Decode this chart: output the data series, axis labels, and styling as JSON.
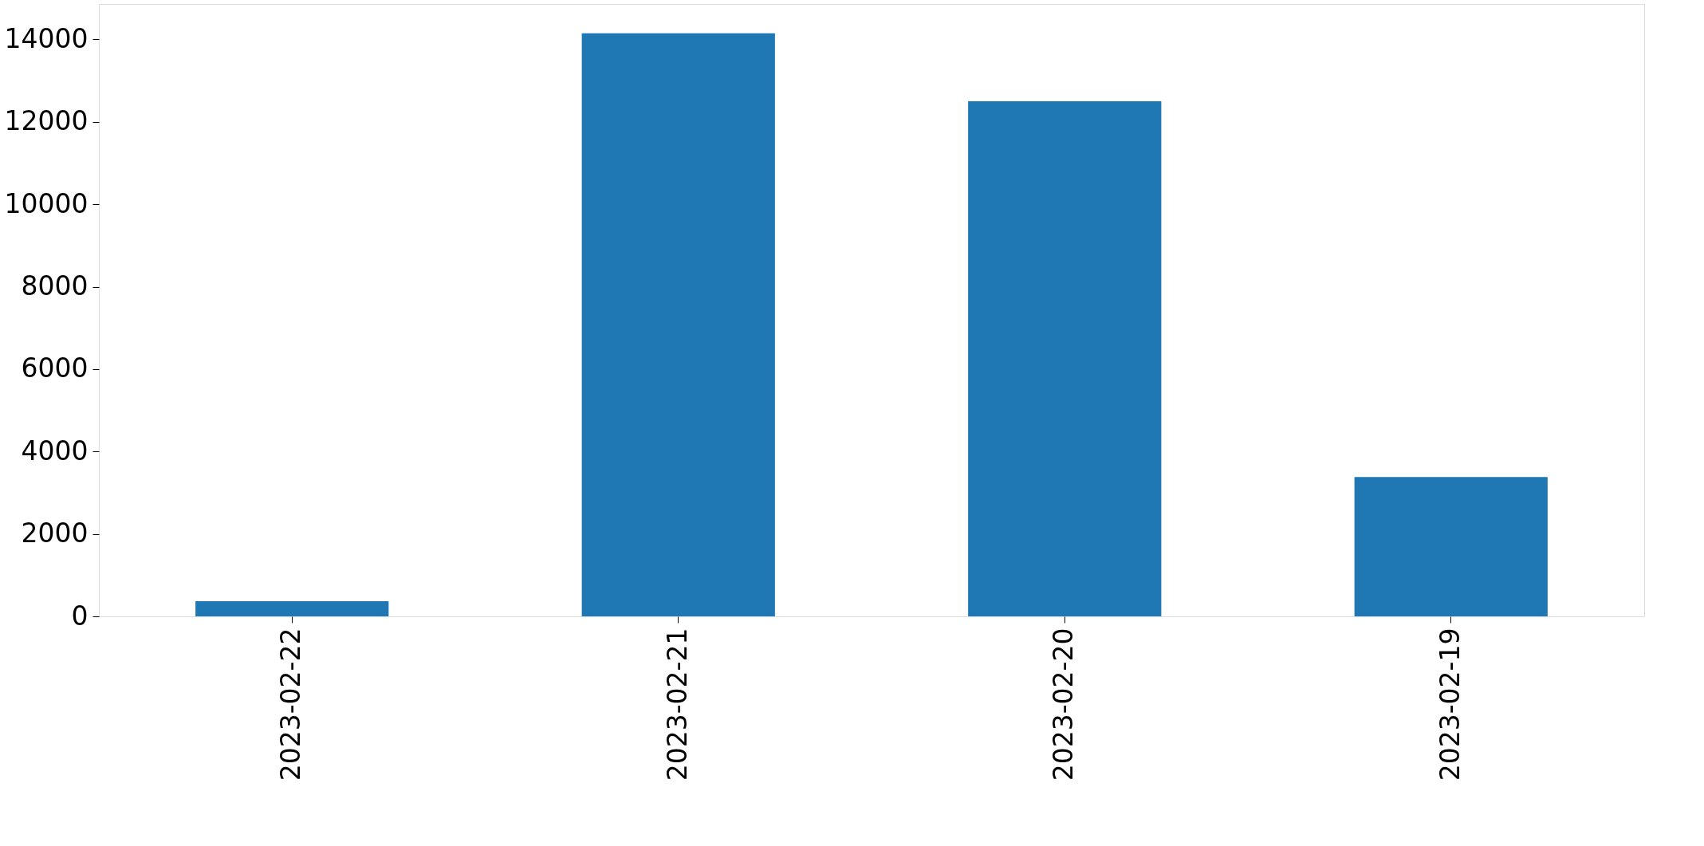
{
  "chart_data": {
    "type": "bar",
    "categories": [
      "2023-02-22",
      "2023-02-21",
      "2023-02-20",
      "2023-02-19"
    ],
    "values": [
      370,
      14150,
      12500,
      3380
    ],
    "color": "#1f77b4",
    "ylim": [
      0,
      14860
    ],
    "yticks": [
      0,
      2000,
      4000,
      6000,
      8000,
      10000,
      12000,
      14000
    ],
    "grid": false
  }
}
